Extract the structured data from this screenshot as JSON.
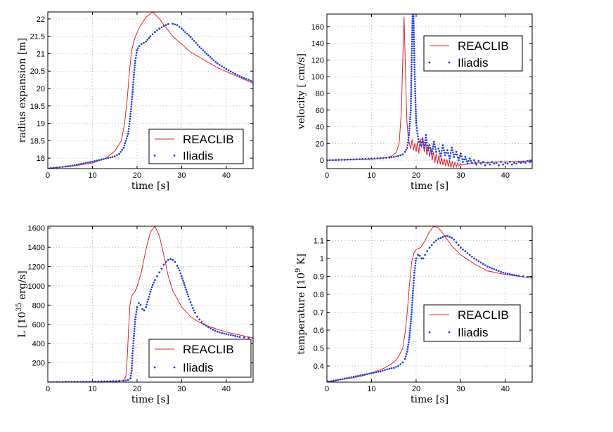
{
  "chart_data": [
    {
      "id": "radius",
      "type": "line",
      "xlabel": "time [s]",
      "ylabel": "radius expansion [m]",
      "xlim": [
        0,
        46
      ],
      "ylim": [
        17.7,
        22.2
      ],
      "xticks": [
        0,
        10,
        20,
        30,
        40
      ],
      "yticks": [
        18,
        18.5,
        19,
        19.5,
        20,
        20.5,
        21,
        21.5,
        22
      ],
      "legend_position": "bottom-right",
      "series": [
        {
          "name": "REACLIB",
          "style": "line",
          "color": "#e8202a",
          "x": [
            0,
            5,
            10,
            13,
            15,
            16.5,
            17.2,
            17.8,
            18.3,
            18.8,
            19.5,
            20.5,
            22,
            23.5,
            25,
            28,
            32,
            38,
            46
          ],
          "y": [
            17.71,
            17.76,
            17.86,
            18.0,
            18.2,
            18.5,
            19.0,
            19.7,
            20.5,
            21.1,
            21.45,
            21.75,
            22.05,
            22.2,
            22.0,
            21.5,
            21.05,
            20.6,
            20.15
          ]
        },
        {
          "name": "Iliadis",
          "style": "dots",
          "color": "#1f3fe0",
          "x": [
            0,
            2,
            4,
            6,
            8,
            10,
            12,
            14,
            15,
            16,
            17,
            18,
            18.5,
            19,
            19.3,
            19.6,
            20,
            20.5,
            21,
            22,
            23,
            24,
            25,
            26,
            27,
            28,
            29,
            30,
            32,
            34,
            36,
            38,
            40,
            42,
            44,
            46
          ],
          "y": [
            17.71,
            17.73,
            17.76,
            17.8,
            17.85,
            17.9,
            17.96,
            18.02,
            18.05,
            18.12,
            18.3,
            18.7,
            19.2,
            19.9,
            20.4,
            20.8,
            21.1,
            21.22,
            21.28,
            21.35,
            21.5,
            21.62,
            21.72,
            21.8,
            21.85,
            21.86,
            21.82,
            21.72,
            21.48,
            21.2,
            20.95,
            20.72,
            20.56,
            20.42,
            20.3,
            20.2
          ]
        }
      ]
    },
    {
      "id": "velocity",
      "type": "line",
      "xlabel": "time [s]",
      "ylabel": "velocity [ cm/s]",
      "xlim": [
        0,
        46
      ],
      "ylim": [
        -10,
        175
      ],
      "xticks": [
        0,
        10,
        20,
        30,
        40
      ],
      "yticks": [
        0,
        20,
        40,
        60,
        80,
        100,
        120,
        140,
        160
      ],
      "legend_position": "top-right",
      "series": [
        {
          "name": "REACLIB",
          "style": "line",
          "color": "#e8202a",
          "x": [
            0,
            5,
            10,
            13,
            14.5,
            15.5,
            16.2,
            16.7,
            17.0,
            17.3,
            17.6,
            17.9,
            18.2,
            18.5,
            18.8,
            19.1,
            19.4,
            19.7,
            20.0,
            20.3,
            20.6,
            20.9,
            21.2,
            21.5,
            21.8,
            22.1,
            22.4,
            22.7,
            23.0,
            23.3,
            23.6,
            23.9,
            24.2,
            24.5,
            24.8,
            25.1,
            25.4,
            25.7,
            26.0,
            26.3,
            26.6,
            26.9,
            27.2,
            27.5,
            27.8,
            28.1,
            28.4,
            28.7,
            29.0,
            29.3,
            29.6,
            29.9,
            30.2,
            30.5,
            31,
            32,
            33,
            34,
            36,
            38,
            40,
            42,
            44,
            46
          ],
          "y": [
            0,
            0.5,
            1,
            3,
            5,
            9,
            20,
            60,
            120,
            172,
            110,
            50,
            28,
            20,
            14,
            25,
            12,
            20,
            10,
            22,
            8,
            26,
            15,
            28,
            10,
            22,
            6,
            18,
            4,
            14,
            0,
            10,
            -3,
            8,
            -4,
            6,
            -5,
            3,
            -6,
            2,
            -7,
            1,
            -8,
            0,
            -9,
            -1,
            -9,
            -2,
            -8,
            -3,
            -7,
            -4,
            -6,
            -5,
            -5,
            -4,
            -4,
            -3,
            -3,
            -2,
            -2,
            -1.5,
            -1,
            -1
          ]
        },
        {
          "name": "Iliadis",
          "style": "dots",
          "color": "#1f3fe0",
          "x": [
            0,
            2,
            4,
            6,
            8,
            10,
            12,
            14,
            15,
            16,
            17,
            17.5,
            18,
            18.4,
            18.8,
            19.0,
            19.2,
            19.4,
            19.6,
            19.8,
            20.0,
            20.3,
            20.6,
            21.0,
            21.4,
            21.8,
            22.2,
            22.6,
            23.0,
            23.5,
            24.0,
            24.5,
            25.0,
            25.5,
            26.0,
            26.5,
            27.0,
            27.5,
            28.0,
            28.5,
            29.0,
            29.5,
            30.0,
            30.5,
            31.0,
            31.5,
            32.0,
            32.5,
            33.0,
            33.5,
            34.0,
            34.5,
            35.0,
            35.5,
            36.0,
            36.5,
            37.0,
            37.5,
            38.0,
            38.5,
            39.0,
            39.5,
            40.0,
            40.5,
            41.0,
            41.5,
            42.0,
            42.5,
            43.0,
            43.5,
            44.0,
            44.5,
            45.0,
            45.5,
            46.0
          ],
          "y": [
            0,
            0.3,
            0.6,
            1,
            1.5,
            2,
            2.5,
            3,
            4,
            5,
            7,
            10,
            15,
            30,
            60,
            120,
            175,
            175,
            120,
            80,
            45,
            32,
            22,
            18,
            25,
            15,
            30,
            12,
            18,
            8,
            22,
            10,
            14,
            5,
            18,
            6,
            12,
            2,
            15,
            4,
            10,
            0,
            8,
            -2,
            4,
            -4,
            2,
            -3,
            0,
            -5,
            -1,
            -4,
            -2,
            -6,
            -3,
            -5,
            -2,
            -4,
            -3,
            -6,
            -2,
            -5,
            -3,
            -4,
            -2,
            -5,
            -3,
            -4,
            -2,
            -3,
            -2,
            -3,
            -1,
            -2,
            -2
          ]
        }
      ]
    },
    {
      "id": "luminosity",
      "type": "line",
      "xlabel": "time [s]",
      "ylabel": "L [10",
      "ylabel_sup": "35",
      "ylabel_tail": " erg/s]",
      "xlim": [
        0,
        46
      ],
      "ylim": [
        0,
        1620
      ],
      "xticks": [
        0,
        10,
        20,
        30,
        40
      ],
      "yticks": [
        200,
        400,
        600,
        800,
        1000,
        1200,
        1400,
        1600
      ],
      "legend_position": "bottom-right",
      "series": [
        {
          "name": "REACLIB",
          "style": "line",
          "color": "#e8202a",
          "x": [
            0,
            5,
            10,
            14,
            16,
            17,
            17.5,
            17.8,
            18.1,
            18.4,
            18.7,
            19.0,
            19.5,
            20,
            21,
            22,
            23,
            24,
            25,
            26,
            27,
            28,
            30,
            32,
            34,
            36,
            38,
            40,
            42,
            44,
            46
          ],
          "y": [
            0,
            1,
            3,
            6,
            10,
            20,
            60,
            250,
            550,
            800,
            880,
            910,
            940,
            990,
            1150,
            1380,
            1560,
            1620,
            1520,
            1320,
            1100,
            950,
            780,
            680,
            620,
            580,
            550,
            520,
            500,
            480,
            460
          ]
        },
        {
          "name": "Iliadis",
          "style": "dots",
          "color": "#1f3fe0",
          "x": [
            0,
            2,
            4,
            6,
            8,
            10,
            12,
            14,
            16,
            17,
            18,
            18.5,
            18.8,
            19.0,
            19.3,
            19.6,
            20.0,
            20.4,
            20.8,
            21.2,
            21.6,
            22.0,
            22.5,
            23.0,
            23.5,
            24.0,
            24.5,
            25.0,
            25.5,
            26.0,
            26.5,
            27.0,
            27.5,
            28.0,
            28.5,
            29.0,
            29.5,
            30.0,
            30.5,
            31.0,
            31.5,
            32.0,
            32.5,
            33.0,
            33.5,
            34.0,
            35,
            36,
            37,
            38,
            39,
            40,
            41,
            42,
            43,
            44,
            45,
            46
          ],
          "y": [
            0,
            1,
            2,
            3,
            4,
            5,
            7,
            9,
            12,
            15,
            22,
            40,
            120,
            300,
            480,
            650,
            780,
            820,
            800,
            760,
            745,
            780,
            860,
            940,
            1010,
            1060,
            1100,
            1140,
            1180,
            1220,
            1250,
            1270,
            1280,
            1270,
            1250,
            1210,
            1160,
            1100,
            1030,
            960,
            890,
            830,
            770,
            720,
            680,
            650,
            600,
            570,
            545,
            525,
            510,
            500,
            490,
            480,
            470,
            465,
            460,
            455
          ]
        }
      ]
    },
    {
      "id": "temperature",
      "type": "line",
      "xlabel": "time [s]",
      "ylabel": "temperature [10",
      "ylabel_sup": "9",
      "ylabel_tail": " K]",
      "xlim": [
        0,
        46
      ],
      "ylim": [
        0.31,
        1.18
      ],
      "xticks": [
        0,
        10,
        20,
        30,
        40
      ],
      "yticks": [
        0.4,
        0.5,
        0.6,
        0.7,
        0.8,
        0.9,
        1,
        1.1
      ],
      "legend_position": "bottom-right",
      "series": [
        {
          "name": "REACLIB",
          "style": "line",
          "color": "#e8202a",
          "x": [
            0,
            1,
            3,
            5,
            8,
            11,
            13,
            15,
            16,
            17,
            17.5,
            18,
            18.5,
            19,
            19.5,
            20,
            21,
            22,
            23,
            24,
            25,
            26,
            28,
            30,
            33,
            36,
            40,
            43,
            46
          ],
          "y": [
            0.32,
            0.31,
            0.325,
            0.33,
            0.345,
            0.37,
            0.39,
            0.42,
            0.45,
            0.5,
            0.58,
            0.7,
            0.85,
            0.98,
            1.03,
            1.05,
            1.06,
            1.1,
            1.15,
            1.18,
            1.17,
            1.14,
            1.07,
            1.02,
            0.97,
            0.93,
            0.91,
            0.9,
            0.89
          ]
        },
        {
          "name": "Iliadis",
          "style": "dots",
          "color": "#1f3fe0",
          "x": [
            0,
            2,
            4,
            6,
            8,
            10,
            12,
            14,
            15,
            16,
            17,
            17.5,
            18,
            18.5,
            19.0,
            19.3,
            19.6,
            20.0,
            20.4,
            20.8,
            21.2,
            21.6,
            22.0,
            22.5,
            23.0,
            23.5,
            24.0,
            24.5,
            25.0,
            25.5,
            26.0,
            26.5,
            27.0,
            27.5,
            28.0,
            28.5,
            29.0,
            29.5,
            30.0,
            31,
            32,
            33,
            34,
            35,
            36,
            37,
            38,
            39,
            40,
            41,
            42,
            43,
            44,
            45,
            46
          ],
          "y": [
            0.31,
            0.32,
            0.33,
            0.34,
            0.35,
            0.36,
            0.37,
            0.385,
            0.39,
            0.4,
            0.42,
            0.44,
            0.48,
            0.56,
            0.7,
            0.82,
            0.92,
            1.0,
            1.02,
            1.015,
            1.0,
            1.0,
            1.02,
            1.04,
            1.06,
            1.075,
            1.09,
            1.1,
            1.11,
            1.115,
            1.12,
            1.125,
            1.125,
            1.12,
            1.115,
            1.105,
            1.09,
            1.075,
            1.06,
            1.04,
            1.02,
            1.0,
            0.985,
            0.97,
            0.955,
            0.945,
            0.935,
            0.925,
            0.918,
            0.912,
            0.907,
            0.903,
            0.9,
            0.897,
            0.895
          ]
        }
      ]
    }
  ]
}
